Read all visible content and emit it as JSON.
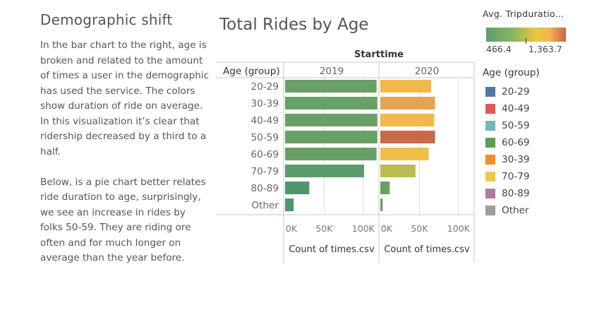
{
  "text_panel": {
    "heading": "Demographic shift",
    "paragraph1": "In the bar chart to the right, age is broken and related to the amount of times a user in the demographic has used the service. The colors show duration of ride on average. In this visualization it’s clear that ridership decreased by a third to a half.",
    "paragraph2": "Below, is a pie chart better relates ride duration to age, surprisingly, we see an increase in rides by folks 50-59. They are riding ore often and for much longer on average than the year before."
  },
  "color_legend": {
    "title": "Avg. Tripduratio...",
    "min_label": "466.4",
    "max_label": "1,363.7"
  },
  "age_legend": {
    "title": "Age (group)",
    "items": [
      {
        "label": "20-29",
        "color": "#4e79a7"
      },
      {
        "label": "40-49",
        "color": "#e15759"
      },
      {
        "label": "50-59",
        "color": "#76b7b2"
      },
      {
        "label": "60-69",
        "color": "#59a14f"
      },
      {
        "label": "30-39",
        "color": "#f28e2b"
      },
      {
        "label": "70-79",
        "color": "#edc948"
      },
      {
        "label": "80-89",
        "color": "#b07aa1"
      },
      {
        "label": "Other",
        "color": "#9d9d9d"
      }
    ]
  },
  "chart_data": {
    "type": "bar",
    "orientation": "horizontal",
    "title": "Total Rides by Age",
    "column_header": "Starttime",
    "row_header": "Age (group)",
    "categories": [
      "20-29",
      "30-39",
      "40-49",
      "50-59",
      "60-69",
      "70-79",
      "80-89",
      "Other"
    ],
    "xlabel": "Count of times.csv",
    "xlim": [
      0,
      120000
    ],
    "ticks": [
      0,
      50000,
      100000
    ],
    "tick_labels": [
      "0K",
      "50K",
      "100K"
    ],
    "series": [
      {
        "name": "2019",
        "values": [
          117000,
          118000,
          118000,
          118000,
          117000,
          101000,
          31000,
          11000
        ],
        "colors": [
          "#6a9f66",
          "#68a067",
          "#68a067",
          "#69a067",
          "#6a9f66",
          "#5c9b6c",
          "#4f966e",
          "#4f966e"
        ]
      },
      {
        "name": "2020",
        "values": [
          65000,
          70000,
          69000,
          70000,
          62000,
          45000,
          12000,
          3000
        ],
        "colors": [
          "#f2b84b",
          "#e7a352",
          "#f2b84b",
          "#c8694a",
          "#f0bf4a",
          "#b8be4e",
          "#6a9f66",
          "#6a9f66"
        ]
      }
    ]
  }
}
